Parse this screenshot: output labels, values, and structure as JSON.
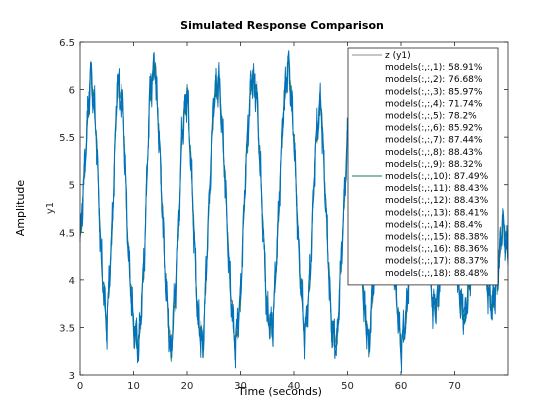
{
  "chart_data": {
    "type": "line",
    "title": "Simulated Response Comparison",
    "xlabel": "Time (seconds)",
    "ylabel": "Amplitude",
    "channel_label": "y1",
    "xlim": [
      0,
      80
    ],
    "ylim": [
      3,
      6.5
    ],
    "xticks": [
      "0",
      "10",
      "20",
      "30",
      "40",
      "50",
      "60",
      "70"
    ],
    "xtick_values": [
      0,
      10,
      20,
      30,
      40,
      50,
      60,
      70
    ],
    "yticks": [
      "3",
      "3.5",
      "4",
      "4.5",
      "5",
      "5.5",
      "6",
      "6.5"
    ],
    "ytick_values": [
      3,
      3.5,
      4,
      4.5,
      5,
      5.5,
      6,
      6.5
    ],
    "legend_position": "top-right",
    "series": [
      {
        "name": "z (y1)",
        "color": "#8c8c8c"
      },
      {
        "name": "models(:,:,1): 58.91%",
        "color": "#ffffff"
      },
      {
        "name": "models(:,:,2): 76.68%",
        "color": "#ffffff"
      },
      {
        "name": "models(:,:,3): 85.97%",
        "color": "#ffffff"
      },
      {
        "name": "models(:,:,4): 71.74%",
        "color": "#ffffff"
      },
      {
        "name": "models(:,:,5): 78.2%",
        "color": "#ffffff"
      },
      {
        "name": "models(:,:,6): 85.92%",
        "color": "#ffffff"
      },
      {
        "name": "models(:,:,7): 87.44%",
        "color": "#ffffff"
      },
      {
        "name": "models(:,:,8): 88.43%",
        "color": "#ffffff"
      },
      {
        "name": "models(:,:,9): 88.32%",
        "color": "#ffffff"
      },
      {
        "name": "models(:,:,10): 87.49%",
        "color": "#1a7a5a"
      },
      {
        "name": "models(:,:,11): 88.43%",
        "color": "#ffffff"
      },
      {
        "name": "models(:,:,12): 88.43%",
        "color": "#ffffff"
      },
      {
        "name": "models(:,:,13): 88.41%",
        "color": "#ffffff"
      },
      {
        "name": "models(:,:,14): 88.4%",
        "color": "#ffffff"
      },
      {
        "name": "models(:,:,15): 88.38%",
        "color": "#ffffff"
      },
      {
        "name": "models(:,:,16): 88.36%",
        "color": "#ffffff"
      },
      {
        "name": "models(:,:,17): 88.37%",
        "color": "#ffffff"
      },
      {
        "name": "models(:,:,18): 88.48%",
        "color": "#ffffff"
      }
    ],
    "signal": {
      "color": "#0072bd",
      "x": [
        0,
        1,
        2,
        3,
        4,
        5,
        6,
        7,
        8,
        9,
        10,
        11,
        12,
        13,
        14,
        15,
        16,
        17,
        18,
        19,
        20,
        21,
        22,
        23,
        24,
        25,
        26,
        27,
        28,
        29,
        30,
        31,
        32,
        33,
        34,
        35,
        36,
        37,
        38,
        39,
        40,
        41,
        42,
        43,
        44,
        45,
        46,
        47,
        48,
        49,
        50,
        51,
        52,
        53,
        54,
        55,
        56,
        57,
        58,
        59,
        60,
        61,
        62,
        63,
        64,
        65,
        66,
        67,
        68,
        69,
        70,
        71,
        72,
        73,
        74,
        75,
        76,
        77,
        78,
        79,
        80
      ],
      "y": [
        4.4,
        5.3,
        6.2,
        5.6,
        4.2,
        3.5,
        4.5,
        6.1,
        5.8,
        4.3,
        3.5,
        3.3,
        4.2,
        5.9,
        6.3,
        5.3,
        4.0,
        3.2,
        4.0,
        5.5,
        6.0,
        4.9,
        3.6,
        3.3,
        4.6,
        5.9,
        6.1,
        5.2,
        4.0,
        3.3,
        3.8,
        5.2,
        6.1,
        6.0,
        4.8,
        3.6,
        3.5,
        4.5,
        5.8,
        6.3,
        5.5,
        4.2,
        3.4,
        4.0,
        5.4,
        5.9,
        4.7,
        3.5,
        3.3,
        4.4,
        5.5,
        5.8,
        4.9,
        3.8,
        3.3,
        4.1,
        5.2,
        5.8,
        5.0,
        3.9,
        3.3,
        3.6,
        4.6,
        5.4,
        5.3,
        4.4,
        3.7,
        3.8,
        4.7,
        5.0,
        4.4,
        3.8,
        3.6,
        4.1,
        4.8,
        4.6,
        4.0,
        3.7,
        4.0,
        4.6,
        4.3
      ]
    }
  }
}
